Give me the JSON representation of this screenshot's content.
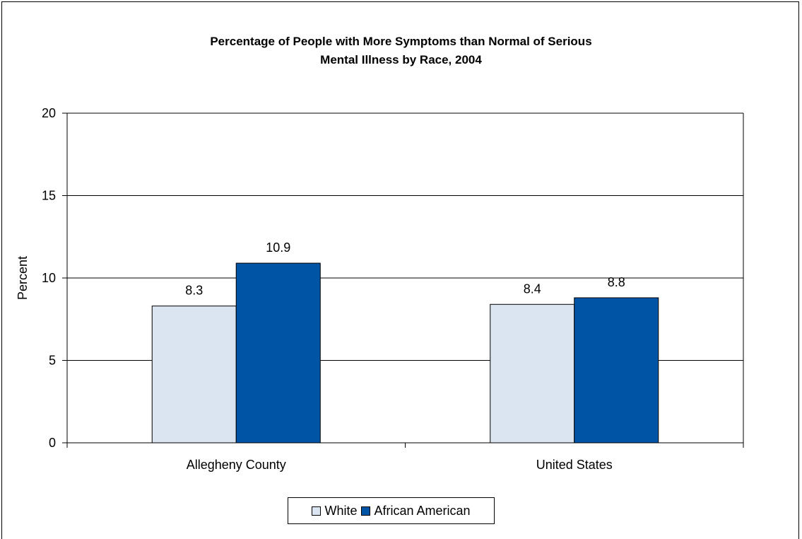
{
  "colors": {
    "white_series": "#dbe5f1",
    "african_american_series": "#0054a6",
    "gridline": "#000000"
  },
  "chart_data": {
    "type": "bar",
    "title_line1": "Percentage of People with More Symptoms than Normal of Serious",
    "title_line2": "Mental Illness by Race, 2004",
    "xlabel": "",
    "ylabel": "Percent",
    "ylim": [
      0,
      20
    ],
    "yticks": [
      0,
      5,
      10,
      15,
      20
    ],
    "categories": [
      "Allegheny County",
      "United States"
    ],
    "series": [
      {
        "name": "White",
        "values": [
          8.3,
          8.4
        ],
        "labels": [
          "8.3",
          "8.4"
        ]
      },
      {
        "name": "African American",
        "values": [
          10.9,
          8.8
        ],
        "labels": [
          "10.9",
          "8.8"
        ]
      }
    ],
    "grid": true,
    "legend_position": "bottom"
  }
}
